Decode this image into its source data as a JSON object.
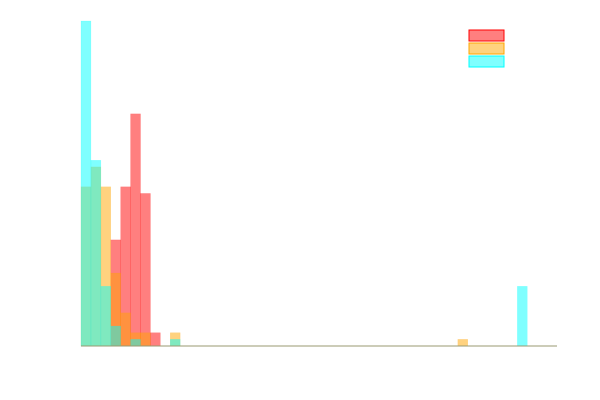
{
  "chart_data": {
    "type": "histogram",
    "title": "",
    "xlabel": "",
    "ylabel": "",
    "x_range": [
      0,
      480
    ],
    "y_range": [
      0,
      49
    ],
    "bin_width": 10,
    "grid": false,
    "legend": {
      "position": "top-right",
      "entries": [
        {
          "name": "",
          "color": "#ff0000"
        },
        {
          "name": "",
          "color": "#ffa500"
        },
        {
          "name": "",
          "color": "#00ffff"
        }
      ]
    },
    "series": [
      {
        "name": "",
        "color": "#ff0000",
        "bins": [
          {
            "x": 30,
            "count": 16
          },
          {
            "x": 40,
            "count": 24
          },
          {
            "x": 50,
            "count": 35
          },
          {
            "x": 60,
            "count": 23
          },
          {
            "x": 70,
            "count": 2
          }
        ]
      },
      {
        "name": "",
        "color": "#ffa500",
        "bins": [
          {
            "x": 0,
            "count": 24
          },
          {
            "x": 10,
            "count": 27
          },
          {
            "x": 20,
            "count": 24
          },
          {
            "x": 30,
            "count": 11
          },
          {
            "x": 40,
            "count": 5
          },
          {
            "x": 50,
            "count": 2
          },
          {
            "x": 60,
            "count": 2
          },
          {
            "x": 90,
            "count": 2
          },
          {
            "x": 380,
            "count": 1
          }
        ]
      },
      {
        "name": "",
        "color": "#00ffff",
        "bins": [
          {
            "x": 0,
            "count": 49
          },
          {
            "x": 10,
            "count": 28
          },
          {
            "x": 20,
            "count": 9
          },
          {
            "x": 30,
            "count": 3
          },
          {
            "x": 50,
            "count": 1
          },
          {
            "x": 90,
            "count": 1
          },
          {
            "x": 440,
            "count": 9
          }
        ]
      }
    ]
  }
}
